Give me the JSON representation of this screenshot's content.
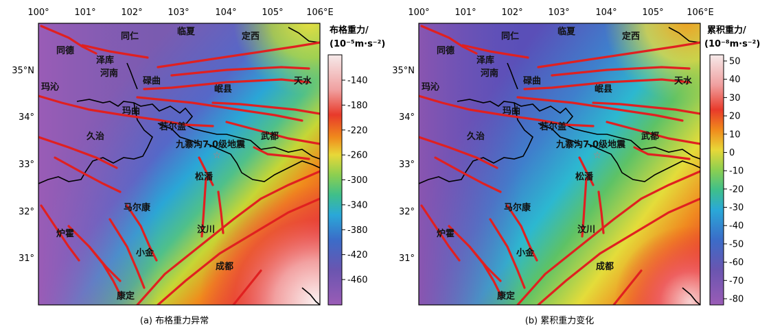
{
  "panels": [
    {
      "id": "a",
      "caption": "(a) 布格重力异常",
      "colorbar": {
        "title_line1": "布格重力/",
        "title_line2": "(10⁻⁵m·s⁻²)",
        "ticks": [
          "-140",
          "-180",
          "-220",
          "-260",
          "-300",
          "-340",
          "-380",
          "-420",
          "-460"
        ]
      }
    },
    {
      "id": "b",
      "caption": "(b) 累积重力变化",
      "colorbar": {
        "title_line1": "累积重力/",
        "title_line2": "(10⁻⁸m·s⁻²)",
        "ticks": [
          "50",
          "40",
          "30",
          "20",
          "10",
          "0",
          "-10",
          "-20",
          "-30",
          "-40",
          "-50",
          "-60",
          "-70",
          "-80"
        ]
      }
    }
  ],
  "lon_labels": [
    "100°",
    "101°",
    "102°",
    "103°",
    "104°",
    "105°",
    "106°E"
  ],
  "lat_labels": [
    "35°N",
    "34°",
    "33°",
    "32°",
    "31°"
  ],
  "places": [
    "同仁",
    "临夏",
    "定西",
    "同德",
    "泽库",
    "河南",
    "碌曲",
    "岷县",
    "天水",
    "玛沁",
    "玛曲",
    "若尔盖",
    "武都",
    "久治",
    "九寨沟7.0级地震",
    "松潘",
    "马尔康",
    "汶川",
    "炉霍",
    "小金",
    "成都",
    "康定"
  ],
  "epicenter_symbol": "☆",
  "colors": {
    "fault": "#e02020",
    "border": "#000000",
    "epicenter": "#cc7777"
  }
}
